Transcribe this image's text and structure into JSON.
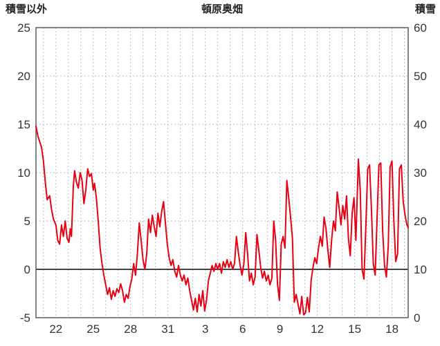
{
  "header": {
    "left_axis_title": "積雪以外",
    "title": "頓原奥畑",
    "right_axis_title": "積雪"
  },
  "colors": {
    "line": "#e60012",
    "grid": "#bcbcbc",
    "border": "#5a5a5a",
    "zero_line": "#444444",
    "text": "#333333",
    "background": "#ffffff"
  },
  "chart_data": {
    "type": "line",
    "title": "頓原奥畑",
    "left_axis": {
      "label": "積雪以外",
      "min": -5,
      "max": 25,
      "ticks": [
        25,
        20,
        15,
        10,
        5,
        0,
        -5
      ]
    },
    "right_axis": {
      "label": "積雪",
      "min": 0,
      "max": 60,
      "ticks": [
        60,
        50,
        40,
        30,
        20,
        10,
        0
      ]
    },
    "x_axis": {
      "min": 20.4,
      "max": 50.3,
      "day_gridline_step": 1,
      "tick_positions": [
        22,
        25,
        28,
        31,
        34,
        37,
        40,
        43,
        46,
        49
      ],
      "tick_labels": [
        "22",
        "25",
        "28",
        "31",
        "3",
        "6",
        "9",
        "12",
        "15",
        "18"
      ]
    },
    "zero_line_y": 0,
    "grid": true,
    "legend": "none",
    "series": [
      {
        "name": "積雪以外",
        "color": "#e60012",
        "points": [
          [
            20.4,
            14.8
          ],
          [
            20.55,
            13.8
          ],
          [
            20.7,
            13.2
          ],
          [
            20.85,
            12.6
          ],
          [
            21.0,
            11.2
          ],
          [
            21.15,
            9.0
          ],
          [
            21.3,
            7.2
          ],
          [
            21.5,
            7.6
          ],
          [
            21.65,
            6.2
          ],
          [
            21.8,
            5.2
          ],
          [
            22.0,
            4.6
          ],
          [
            22.15,
            3.0
          ],
          [
            22.3,
            2.6
          ],
          [
            22.45,
            4.6
          ],
          [
            22.6,
            3.4
          ],
          [
            22.75,
            5.0
          ],
          [
            22.9,
            3.2
          ],
          [
            23.05,
            2.8
          ],
          [
            23.15,
            4.2
          ],
          [
            23.25,
            3.4
          ],
          [
            23.4,
            8.6
          ],
          [
            23.5,
            10.2
          ],
          [
            23.65,
            9.0
          ],
          [
            23.8,
            8.4
          ],
          [
            23.95,
            10.0
          ],
          [
            24.1,
            9.2
          ],
          [
            24.25,
            6.8
          ],
          [
            24.4,
            8.2
          ],
          [
            24.55,
            10.4
          ],
          [
            24.7,
            9.6
          ],
          [
            24.85,
            9.9
          ],
          [
            25.0,
            8.2
          ],
          [
            25.1,
            8.9
          ],
          [
            25.25,
            7.4
          ],
          [
            25.4,
            5.0
          ],
          [
            25.55,
            2.2
          ],
          [
            25.7,
            0.6
          ],
          [
            25.85,
            -0.6
          ],
          [
            26.0,
            -1.6
          ],
          [
            26.15,
            -2.6
          ],
          [
            26.3,
            -1.9
          ],
          [
            26.45,
            -3.1
          ],
          [
            26.6,
            -2.2
          ],
          [
            26.75,
            -2.8
          ],
          [
            26.9,
            -2.0
          ],
          [
            27.05,
            -2.4
          ],
          [
            27.2,
            -1.5
          ],
          [
            27.35,
            -2.2
          ],
          [
            27.5,
            -3.4
          ],
          [
            27.65,
            -2.6
          ],
          [
            27.8,
            -3.0
          ],
          [
            27.95,
            -1.8
          ],
          [
            28.1,
            -1.0
          ],
          [
            28.25,
            0.6
          ],
          [
            28.4,
            -0.6
          ],
          [
            28.55,
            1.6
          ],
          [
            28.7,
            4.8
          ],
          [
            28.85,
            3.0
          ],
          [
            29.0,
            1.0
          ],
          [
            29.15,
            0.0
          ],
          [
            29.3,
            1.6
          ],
          [
            29.45,
            5.2
          ],
          [
            29.6,
            3.8
          ],
          [
            29.75,
            5.6
          ],
          [
            29.9,
            4.4
          ],
          [
            30.05,
            3.4
          ],
          [
            30.2,
            5.8
          ],
          [
            30.35,
            4.4
          ],
          [
            30.5,
            6.0
          ],
          [
            30.65,
            7.0
          ],
          [
            30.8,
            4.8
          ],
          [
            30.95,
            2.6
          ],
          [
            31.1,
            1.2
          ],
          [
            31.25,
            0.4
          ],
          [
            31.4,
            1.0
          ],
          [
            31.55,
            -0.2
          ],
          [
            31.7,
            -0.8
          ],
          [
            31.85,
            0.4
          ],
          [
            32.0,
            -0.6
          ],
          [
            32.15,
            -1.2
          ],
          [
            32.3,
            -0.6
          ],
          [
            32.45,
            -1.6
          ],
          [
            32.6,
            -0.9
          ],
          [
            32.75,
            -2.2
          ],
          [
            32.9,
            -3.2
          ],
          [
            33.05,
            -4.2
          ],
          [
            33.2,
            -3.0
          ],
          [
            33.35,
            -4.4
          ],
          [
            33.5,
            -2.6
          ],
          [
            33.65,
            -3.8
          ],
          [
            33.8,
            -2.2
          ],
          [
            33.95,
            -4.3
          ],
          [
            34.1,
            -3.2
          ],
          [
            34.25,
            -1.2
          ],
          [
            34.4,
            -0.4
          ],
          [
            34.55,
            0.4
          ],
          [
            34.7,
            -0.2
          ],
          [
            34.85,
            0.6
          ],
          [
            35.0,
            0.0
          ],
          [
            35.15,
            0.6
          ],
          [
            35.3,
            -0.4
          ],
          [
            35.45,
            0.8
          ],
          [
            35.6,
            0.2
          ],
          [
            35.75,
            1.0
          ],
          [
            35.9,
            0.2
          ],
          [
            36.05,
            0.8
          ],
          [
            36.2,
            0.0
          ],
          [
            36.35,
            0.6
          ],
          [
            36.5,
            3.4
          ],
          [
            36.65,
            1.8
          ],
          [
            36.8,
            0.4
          ],
          [
            36.95,
            -0.6
          ],
          [
            37.1,
            0.6
          ],
          [
            37.25,
            3.8
          ],
          [
            37.4,
            1.6
          ],
          [
            37.55,
            -1.2
          ],
          [
            37.7,
            -0.4
          ],
          [
            37.85,
            -1.6
          ],
          [
            38.0,
            -0.8
          ],
          [
            38.15,
            3.6
          ],
          [
            38.3,
            2.0
          ],
          [
            38.45,
            0.2
          ],
          [
            38.6,
            -0.9
          ],
          [
            38.75,
            -0.2
          ],
          [
            38.9,
            -1.2
          ],
          [
            39.05,
            -0.6
          ],
          [
            39.2,
            -1.6
          ],
          [
            39.35,
            -0.9
          ],
          [
            39.5,
            5.0
          ],
          [
            39.65,
            3.0
          ],
          [
            39.8,
            -1.5
          ],
          [
            39.95,
            -3.2
          ],
          [
            40.1,
            2.6
          ],
          [
            40.25,
            3.4
          ],
          [
            40.4,
            2.2
          ],
          [
            40.55,
            9.2
          ],
          [
            40.7,
            7.4
          ],
          [
            40.85,
            5.4
          ],
          [
            41.0,
            3.2
          ],
          [
            41.15,
            -3.4
          ],
          [
            41.3,
            -2.6
          ],
          [
            41.45,
            -3.6
          ],
          [
            41.6,
            -4.6
          ],
          [
            41.75,
            -2.8
          ],
          [
            41.9,
            -4.7
          ],
          [
            42.05,
            -4.5
          ],
          [
            42.2,
            -2.9
          ],
          [
            42.35,
            -4.4
          ],
          [
            42.5,
            -1.2
          ],
          [
            42.65,
            0.2
          ],
          [
            42.8,
            1.2
          ],
          [
            42.95,
            0.6
          ],
          [
            43.1,
            2.2
          ],
          [
            43.25,
            3.4
          ],
          [
            43.4,
            2.4
          ],
          [
            43.55,
            5.4
          ],
          [
            43.7,
            4.2
          ],
          [
            43.85,
            2.0
          ],
          [
            44.0,
            0.2
          ],
          [
            44.15,
            3.0
          ],
          [
            44.3,
            5.0
          ],
          [
            44.45,
            4.0
          ],
          [
            44.6,
            8.0
          ],
          [
            44.75,
            6.4
          ],
          [
            44.9,
            4.6
          ],
          [
            45.05,
            6.6
          ],
          [
            45.2,
            5.2
          ],
          [
            45.35,
            7.6
          ],
          [
            45.5,
            3.2
          ],
          [
            45.65,
            1.4
          ],
          [
            45.8,
            5.8
          ],
          [
            45.95,
            7.4
          ],
          [
            46.1,
            3.0
          ],
          [
            46.3,
            11.4
          ],
          [
            46.45,
            8.2
          ],
          [
            46.6,
            0.0
          ],
          [
            46.75,
            -1.0
          ],
          [
            46.9,
            4.4
          ],
          [
            47.05,
            10.4
          ],
          [
            47.2,
            10.8
          ],
          [
            47.35,
            6.2
          ],
          [
            47.5,
            0.6
          ],
          [
            47.65,
            -0.6
          ],
          [
            47.8,
            5.2
          ],
          [
            47.95,
            10.8
          ],
          [
            48.1,
            11.0
          ],
          [
            48.25,
            4.0
          ],
          [
            48.4,
            0.4
          ],
          [
            48.55,
            -0.8
          ],
          [
            48.7,
            2.4
          ],
          [
            48.85,
            10.6
          ],
          [
            49.0,
            11.2
          ],
          [
            49.15,
            5.0
          ],
          [
            49.3,
            0.8
          ],
          [
            49.45,
            1.6
          ],
          [
            49.6,
            10.4
          ],
          [
            49.75,
            10.8
          ],
          [
            49.9,
            7.0
          ],
          [
            50.05,
            5.6
          ],
          [
            50.2,
            4.6
          ],
          [
            50.3,
            4.3
          ]
        ]
      }
    ]
  }
}
